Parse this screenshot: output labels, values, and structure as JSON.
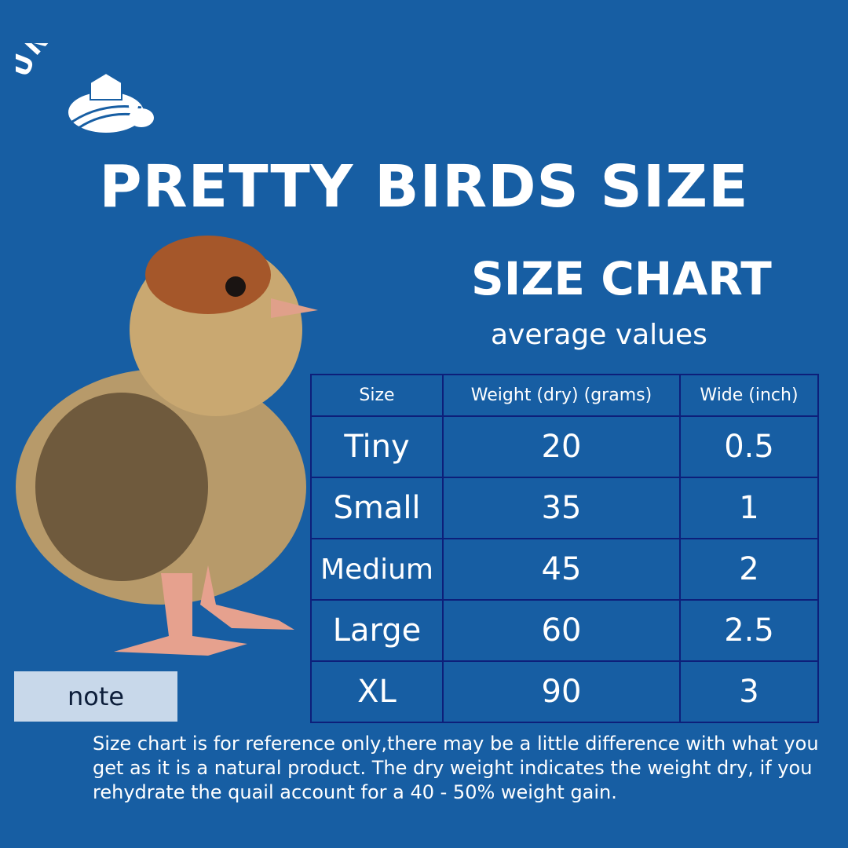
{
  "brand": {
    "logo_text": "UNDIQUE"
  },
  "title": "PRETTY BIRDS SIZE",
  "subtitle": "SIZE CHART",
  "caption": "average values",
  "table": {
    "headers": [
      "Size",
      "Weight (dry) (grams)",
      "Wide (inch)"
    ],
    "rows": [
      [
        "Tiny",
        "20",
        "0.5"
      ],
      [
        "Small",
        "35",
        "1"
      ],
      [
        "Medium",
        "45",
        "2"
      ],
      [
        "Large",
        "60",
        "2.5"
      ],
      [
        "XL",
        "90",
        "3"
      ]
    ]
  },
  "note_label": "note",
  "disclaimer": "Size chart is for reference only,there may be a little difference with what you get as it is a natural product. The dry weight indicates the weight dry, if you rehydrate the quail account for a 40 - 50% weight gain.",
  "colors": {
    "background": "#175ea3",
    "table_border": "#0d1f7a",
    "note_bg": "#c8d8ea"
  }
}
